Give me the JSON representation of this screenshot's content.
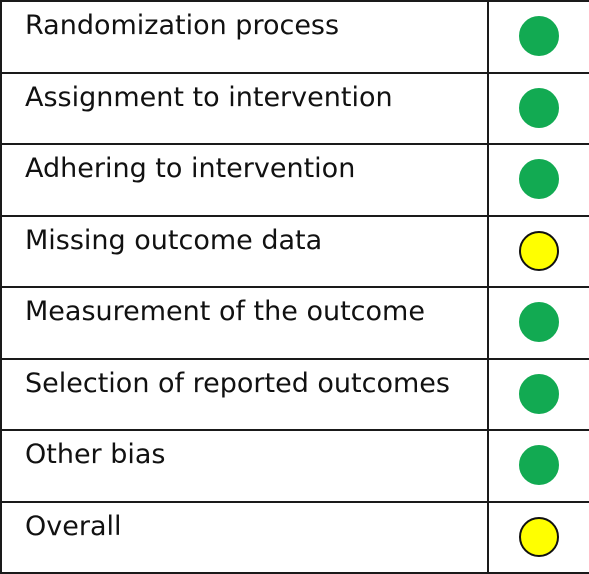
{
  "rows": [
    {
      "domain": "Randomization process",
      "judgement": "low",
      "color": "#12aa52"
    },
    {
      "domain": "Assignment to intervention",
      "judgement": "low",
      "color": "#12aa52"
    },
    {
      "domain": "Adhering to intervention",
      "judgement": "low",
      "color": "#12aa52"
    },
    {
      "domain": "Missing outcome data",
      "judgement": "some",
      "color": "#ffff00"
    },
    {
      "domain": "Measurement of the outcome",
      "judgement": "low",
      "color": "#12aa52"
    },
    {
      "domain": "Selection of reported outcomes",
      "judgement": "low",
      "color": "#12aa52"
    },
    {
      "domain": "Other bias",
      "judgement": "low",
      "color": "#12aa52"
    },
    {
      "domain": "Overall",
      "judgement": "some",
      "color": "#ffff00"
    }
  ]
}
